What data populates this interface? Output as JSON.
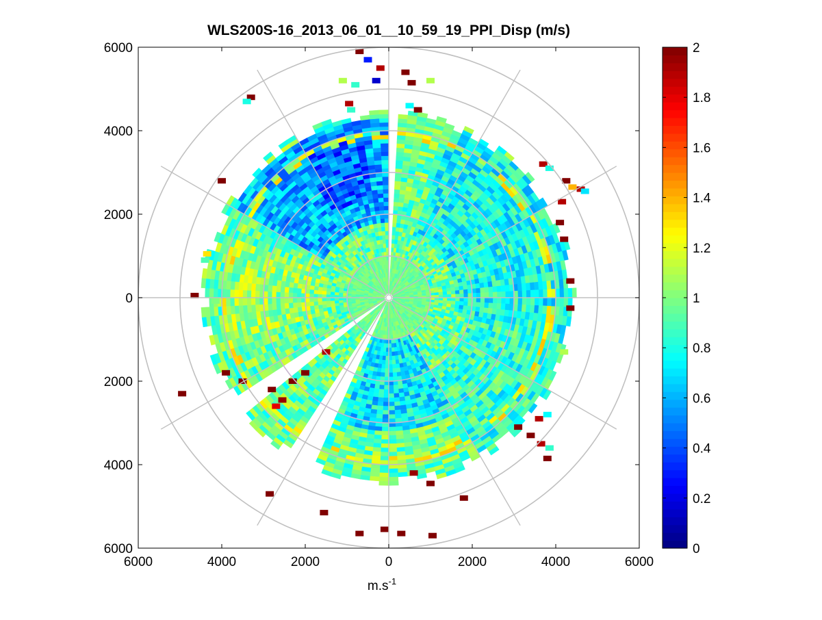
{
  "chart_data": {
    "type": "heatmap",
    "subtype": "polar-ppi-scan",
    "title": "WLS200S-16_2013_06_01__10_59_19_PPI_Disp (m/s)",
    "xlabel_base": "m.s",
    "xlabel_exp": "-1",
    "ylabel": "",
    "xlim": [
      -6000,
      6000
    ],
    "ylim": [
      -6000,
      6000
    ],
    "x_ticks": [
      -6000,
      -4000,
      -2000,
      0,
      2000,
      4000,
      6000
    ],
    "y_ticks": [
      -6000,
      -4000,
      -2000,
      0,
      2000,
      4000,
      6000
    ],
    "x_tick_labels": [
      "6000",
      "4000",
      "2000",
      "0",
      "2000",
      "4000",
      "6000"
    ],
    "y_tick_labels": [
      "6000",
      "4000",
      "2000",
      "0",
      "2000",
      "4000",
      "6000"
    ],
    "range_rings": [
      1000,
      2000,
      3000,
      4000,
      5000,
      6000
    ],
    "spokes_deg": [
      0,
      30,
      60,
      90,
      120,
      150,
      180,
      210,
      240,
      270,
      300,
      330
    ],
    "grid": true,
    "colorbar": {
      "min": 0,
      "max": 2,
      "colormap": "jet",
      "ticks": [
        0,
        0.2,
        0.4,
        0.6,
        0.8,
        1,
        1.2,
        1.4,
        1.6,
        1.8,
        2
      ],
      "tick_labels": [
        "0",
        "0.2",
        "0.4",
        "0.6",
        "0.8",
        "1",
        "1.2",
        "1.4",
        "1.6",
        "1.8",
        "2"
      ]
    },
    "field": {
      "quantity": "velocity dispersion",
      "units": "m/s",
      "dominant_value": 0.95,
      "max_data_range_m": 4400,
      "range_gate_m": 100,
      "azimuth_step_deg": 3,
      "gaps_deg": [
        [
          0,
          3
        ],
        [
          202,
          212
        ],
        [
          230,
          236
        ]
      ],
      "regions": [
        {
          "az_from": 300,
          "az_to": 358,
          "r_from": 1800,
          "r_to": 4300,
          "value": 0.6
        },
        {
          "az_from": 325,
          "az_to": 350,
          "r_from": 2400,
          "r_to": 4100,
          "value": 0.45
        },
        {
          "az_from": 20,
          "az_to": 100,
          "r_from": 1600,
          "r_to": 4400,
          "value": 0.78
        },
        {
          "az_from": 100,
          "az_to": 150,
          "r_from": 2000,
          "r_to": 4400,
          "value": 0.85
        },
        {
          "az_from": 150,
          "az_to": 200,
          "r_from": 800,
          "r_to": 3200,
          "value": 0.72
        },
        {
          "az_from": 255,
          "az_to": 290,
          "r_from": 1500,
          "r_to": 4000,
          "value": 1.05
        }
      ],
      "edge_value": 1.15,
      "edge_ring_m": [
        3800,
        3950
      ],
      "near_field_value": 0.97,
      "near_field_m": 1000
    },
    "outliers": [
      {
        "x": -500,
        "y": 5700,
        "v": 0.3
      },
      {
        "x": -700,
        "y": 5900,
        "v": 2.0
      },
      {
        "x": -200,
        "y": 5500,
        "v": 1.9
      },
      {
        "x": -300,
        "y": 5200,
        "v": 0.15
      },
      {
        "x": 400,
        "y": 5400,
        "v": 2.0
      },
      {
        "x": 550,
        "y": 5150,
        "v": 2.0
      },
      {
        "x": 1000,
        "y": 5200,
        "v": 1.1
      },
      {
        "x": -1100,
        "y": 5200,
        "v": 1.1
      },
      {
        "x": -800,
        "y": 5100,
        "v": 0.85
      },
      {
        "x": -3300,
        "y": 4800,
        "v": 2.0
      },
      {
        "x": -3400,
        "y": 4700,
        "v": 0.8
      },
      {
        "x": -950,
        "y": 4650,
        "v": 1.9
      },
      {
        "x": -900,
        "y": 4500,
        "v": 0.85
      },
      {
        "x": 500,
        "y": 4600,
        "v": 0.75
      },
      {
        "x": 700,
        "y": 4500,
        "v": 2.0
      },
      {
        "x": -4000,
        "y": 2800,
        "v": 2.0
      },
      {
        "x": -4350,
        "y": 1050,
        "v": 1.3
      },
      {
        "x": -4400,
        "y": 900,
        "v": 0.9
      },
      {
        "x": -4650,
        "y": 50,
        "v": 2.0
      },
      {
        "x": -4150,
        "y": -80,
        "v": 1.0
      },
      {
        "x": -3900,
        "y": -1800,
        "v": 2.0
      },
      {
        "x": -3500,
        "y": -2000,
        "v": 2.0
      },
      {
        "x": -4950,
        "y": -2300,
        "v": 2.0
      },
      {
        "x": -2800,
        "y": -2200,
        "v": 2.0
      },
      {
        "x": -2550,
        "y": -2450,
        "v": 1.95
      },
      {
        "x": -2700,
        "y": -2600,
        "v": 1.8
      },
      {
        "x": -2300,
        "y": -2000,
        "v": 2.0
      },
      {
        "x": -2000,
        "y": -1800,
        "v": 2.0
      },
      {
        "x": -1500,
        "y": -1300,
        "v": 1.9
      },
      {
        "x": -2850,
        "y": -4700,
        "v": 2.0
      },
      {
        "x": -1550,
        "y": -5150,
        "v": 2.0
      },
      {
        "x": -700,
        "y": -5650,
        "v": 2.0
      },
      {
        "x": -100,
        "y": -5550,
        "v": 2.0
      },
      {
        "x": 300,
        "y": -5650,
        "v": 2.0
      },
      {
        "x": 1050,
        "y": -5700,
        "v": 2.0
      },
      {
        "x": 1800,
        "y": -4800,
        "v": 2.0
      },
      {
        "x": 1000,
        "y": -4450,
        "v": 2.0
      },
      {
        "x": 600,
        "y": -4200,
        "v": 1.95
      },
      {
        "x": 3100,
        "y": -3100,
        "v": 2.0
      },
      {
        "x": 3400,
        "y": -3300,
        "v": 2.0
      },
      {
        "x": 3650,
        "y": -3500,
        "v": 1.9
      },
      {
        "x": 3850,
        "y": -3600,
        "v": 0.85
      },
      {
        "x": 3800,
        "y": -3850,
        "v": 2.0
      },
      {
        "x": 3600,
        "y": -2900,
        "v": 1.9
      },
      {
        "x": 3800,
        "y": -2800,
        "v": 0.75
      },
      {
        "x": 4200,
        "y": -1300,
        "v": 1.1
      },
      {
        "x": 4350,
        "y": -250,
        "v": 2.0
      },
      {
        "x": 4350,
        "y": 400,
        "v": 2.0
      },
      {
        "x": 4200,
        "y": 1400,
        "v": 2.0
      },
      {
        "x": 4100,
        "y": 1800,
        "v": 2.0
      },
      {
        "x": 4250,
        "y": 2800,
        "v": 2.0
      },
      {
        "x": 4400,
        "y": 2650,
        "v": 1.4
      },
      {
        "x": 4600,
        "y": 2600,
        "v": 1.9
      },
      {
        "x": 4700,
        "y": 2550,
        "v": 0.7
      },
      {
        "x": 4150,
        "y": 2300,
        "v": 1.9
      },
      {
        "x": 3700,
        "y": 3200,
        "v": 1.9
      },
      {
        "x": 3850,
        "y": 3100,
        "v": 0.8
      }
    ]
  }
}
